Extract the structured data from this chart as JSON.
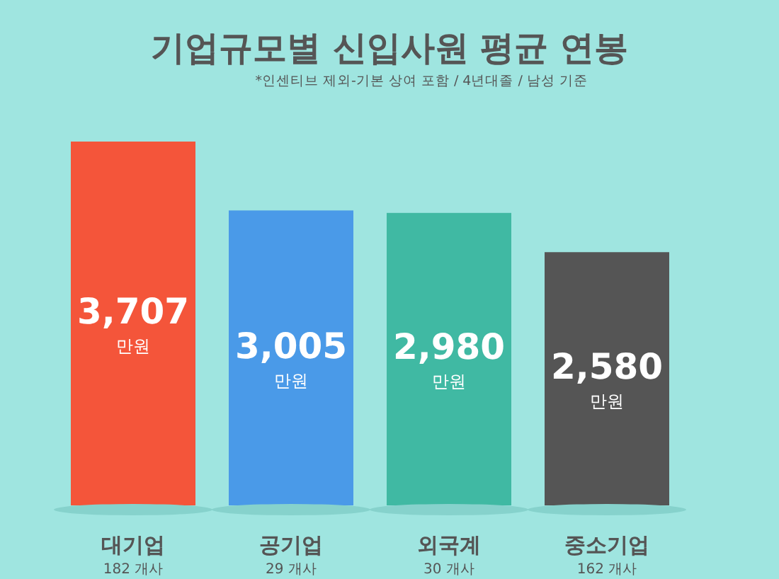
{
  "chart_data": {
    "type": "bar",
    "title": "기업규모별 신입사원 평균 연봉",
    "subtitle": "*인센티브 제외-기본 상여 포함 / 4년대졸 / 남성 기준",
    "categories": [
      "대기업\n182 개사",
      "공기업\n29 개사",
      "외국계\n30 개사",
      "중소기업\n162 개사"
    ],
    "values": [
      3707,
      3005,
      2980,
      2580
    ],
    "colors": [
      "#f4553a",
      "#4a9ae8",
      "#40b9a3",
      "#555555"
    ],
    "value_labels": [
      "3,707\n만원",
      "3,005\n만원",
      "2,980\n만원",
      "2,580\n만원"
    ]
  }
}
